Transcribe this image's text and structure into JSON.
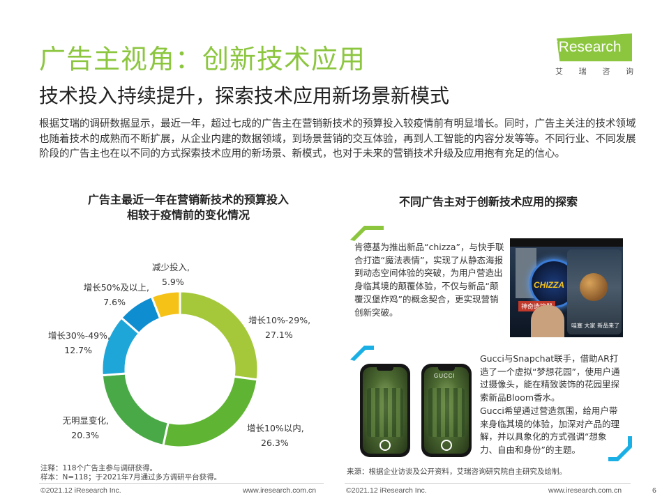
{
  "header": {
    "title": "广告主视角：创新技术应用",
    "subtitle": "技术投入持续提升，探索技术应用新场景新模式"
  },
  "logo": {
    "text": "iResearch",
    "subtitle_chars": [
      "艾",
      "瑞",
      "咨",
      "询"
    ],
    "color": "#8cc63f"
  },
  "intro": "根据艾瑞的调研数据显示，最近一年，超过七成的广告主在营销新技术的预算投入较疫情前有明显增长。同时，广告主关注的技术领域也随着技术的成熟而不断扩展，从企业内建的数据领域，到场景营销的交互体验，再到人工智能的内容分发等等。不同行业、不同发展阶段的广告主也在以不同的方式探索技术应用的新场景、新模式，也对于未来的营销技术升级及应用抱有充足的信心。",
  "left_panel": {
    "title_line1": "广告主最近一年在营销新技术的预算投入",
    "title_line2": "相较于疫情前的变化情况"
  },
  "chart_data": {
    "type": "pie",
    "donut": true,
    "categories": [
      "增长10%-29%,",
      "增长10%以内,",
      "无明显变化,",
      "增长30%-49%,",
      "增长50%及以上,",
      "减少投入,"
    ],
    "values": [
      27.1,
      26.3,
      20.3,
      12.7,
      7.6,
      5.9
    ],
    "value_labels": [
      "27.1%",
      "26.3%",
      "20.3%",
      "12.7%",
      "7.6%",
      "5.9%"
    ],
    "colors": [
      "#a5c83a",
      "#5fb533",
      "#4aa947",
      "#1ea6d8",
      "#0e8dd1",
      "#f5c218"
    ],
    "start": "12 o'clock",
    "direction": "clockwise"
  },
  "right_panel": {
    "title": "不同广告主对于创新技术应用的探索",
    "case1": "肯德基为推出新品“chizza”，与快手联合打造“魔法表情”，实现了从静态海报到动态空间体验的突破，为用户营造出身临其境的颠覆体验，不仅与新品“颠覆汉堡炸鸡”的概念契合，更实现营销创新突破。",
    "case2_p1": "Gucci与Snapchat联手，借助AR打造了一个虚拟“梦想花园”，使用户通过摄像头，能在精致装饰的花园里探索新品Bloom香水。",
    "case2_p2": "Gucci希望通过营造氛围，给用户带来身临其境的体验，加深对产品的理解，并以具象化的方式强调“想象力、自由和身份”的主题。",
    "photo1": {
      "logo_text": "CHIZZA",
      "label": "神奇造控器",
      "caption": "哇塞 大家 新品来了"
    },
    "phone_brand": "GUCCI",
    "accent_colors": [
      "#8cc63f",
      "#1ab0e6"
    ]
  },
  "footer": {
    "note_line1": "注释：118个广告主参与调研获得。",
    "note_line2": "样本：N=118；于2021年7月通过多方调研平台获得。",
    "source": "来源：根据企业访谈及公开资料，艾瑞咨询研究院自主研究及绘制。",
    "copyright_left": "©2021.12 iResearch Inc.",
    "url_left": "www.iresearch.com.cn",
    "copyright_right": "©2021.12 iResearch Inc.",
    "url_right": "www.iresearch.com.cn",
    "page_number": "6"
  }
}
